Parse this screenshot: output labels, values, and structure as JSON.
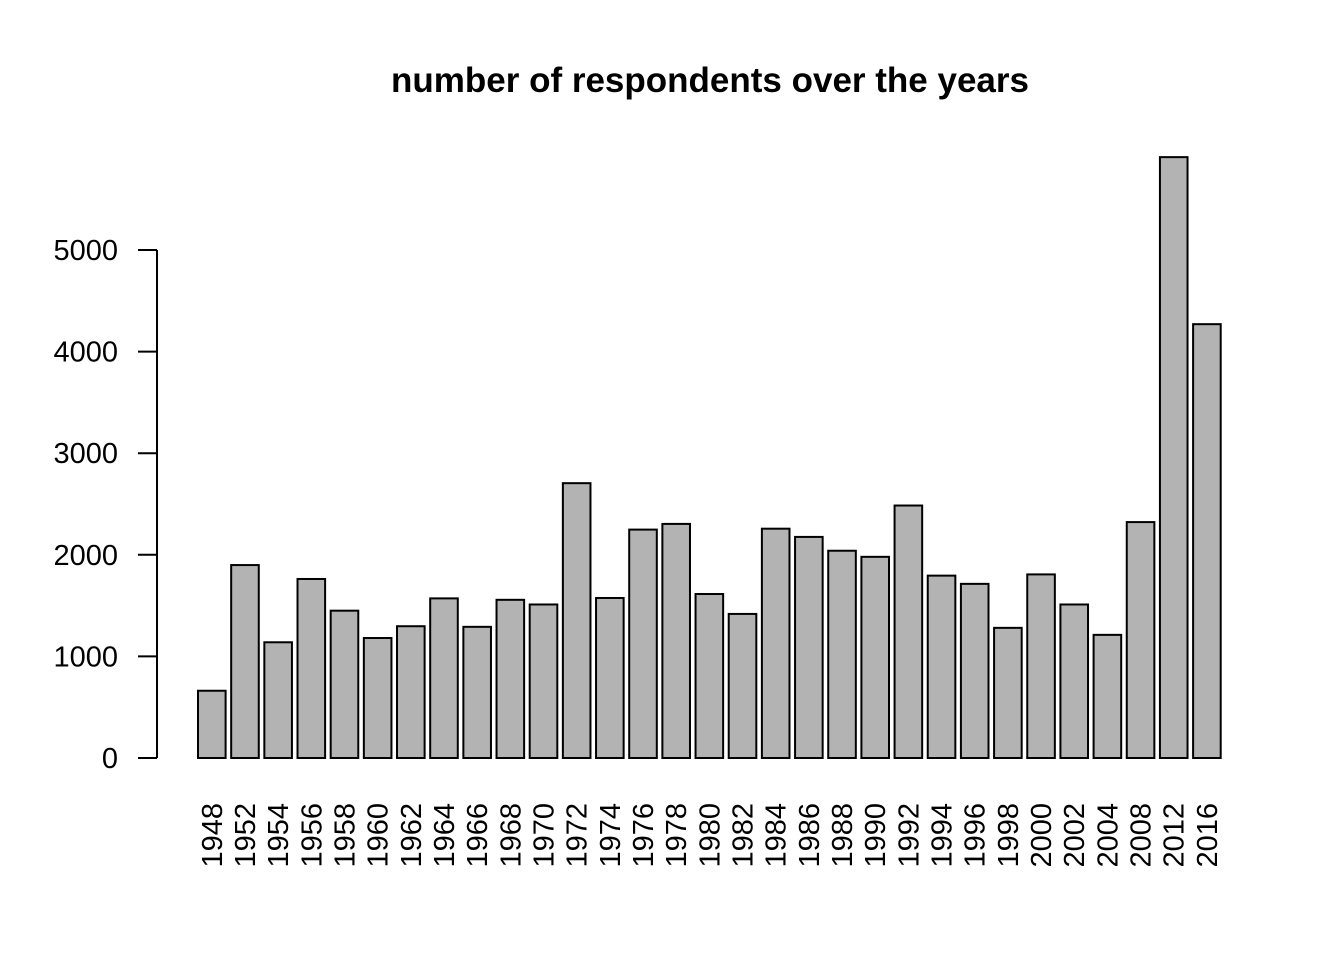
{
  "chart_data": {
    "type": "bar",
    "title": "number of respondents over the years",
    "xlabel": "",
    "ylabel": "",
    "categories": [
      "1948",
      "1952",
      "1954",
      "1956",
      "1958",
      "1960",
      "1962",
      "1964",
      "1966",
      "1968",
      "1970",
      "1972",
      "1974",
      "1976",
      "1978",
      "1980",
      "1982",
      "1984",
      "1986",
      "1988",
      "1990",
      "1992",
      "1994",
      "1996",
      "1998",
      "2000",
      "2002",
      "2004",
      "2008",
      "2012",
      "2016"
    ],
    "values": [
      662,
      1899,
      1139,
      1762,
      1450,
      1181,
      1297,
      1571,
      1291,
      1557,
      1511,
      2705,
      1575,
      2248,
      2304,
      1614,
      1418,
      2257,
      2176,
      2040,
      1980,
      2485,
      1795,
      1714,
      1281,
      1807,
      1511,
      1212,
      2322,
      5914,
      4270
    ],
    "yticks": [
      0,
      1000,
      2000,
      3000,
      4000,
      5000
    ],
    "ylim": [
      0,
      5914
    ],
    "colors": {
      "bar_fill": "#b3b3b3",
      "bar_stroke": "#000000"
    }
  }
}
